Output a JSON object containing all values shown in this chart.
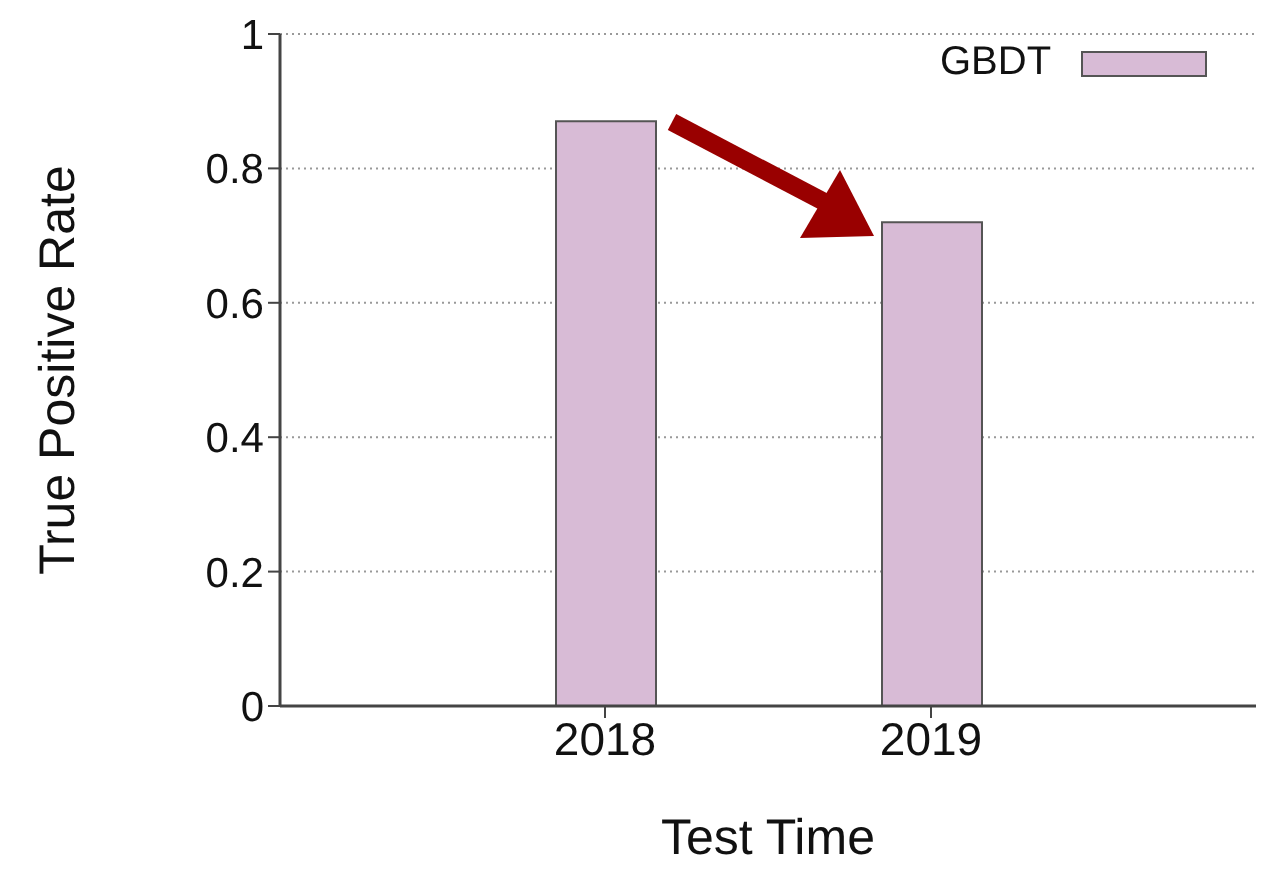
{
  "chart_data": {
    "type": "bar",
    "categories": [
      "2018",
      "2019"
    ],
    "xlabel": "Test Time",
    "ylabel": "True Positive Rate",
    "series": [
      {
        "name": "GBDT",
        "color": "#d8bbd6",
        "values": [
          0.87,
          0.72
        ]
      }
    ],
    "ylim": [
      0,
      1
    ],
    "yticks": [
      0,
      0.2,
      0.4,
      0.6,
      0.8,
      1
    ],
    "grid": "y",
    "legend": "top right"
  }
}
